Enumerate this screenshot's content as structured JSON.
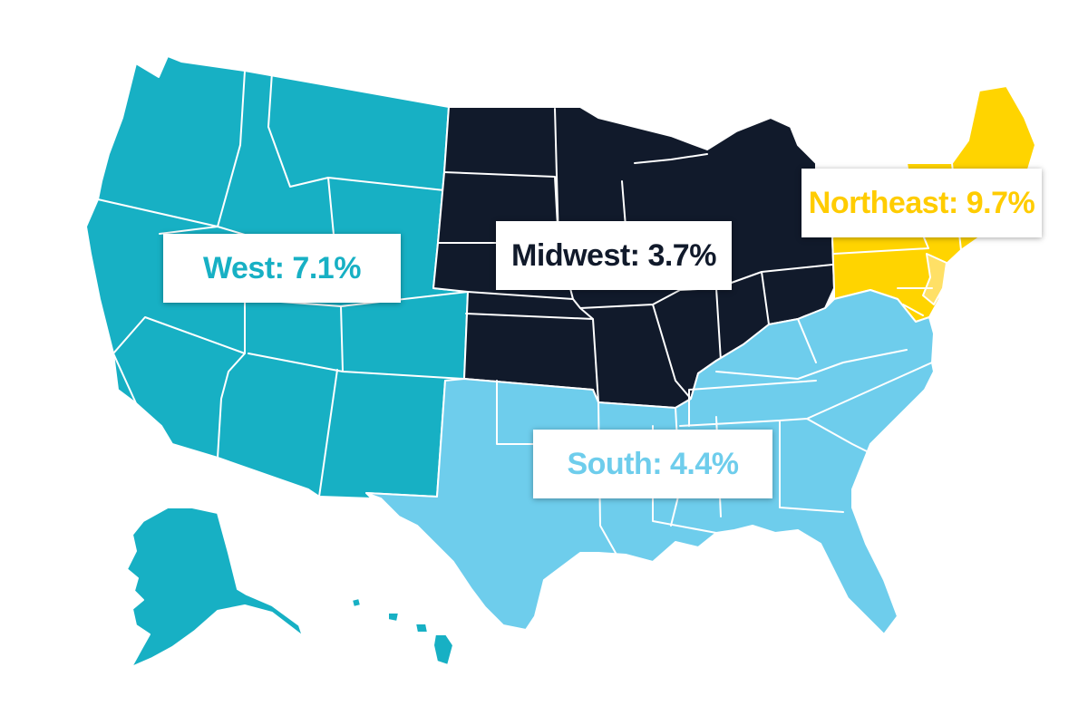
{
  "colors": {
    "west": "#17b0c4",
    "midwest": "#111a2b",
    "northeast": "#ffd400",
    "northeast_light": "#ffe066",
    "south": "#6ecdec",
    "background": "#ffffff"
  },
  "labels": {
    "west": "West: 7.1%",
    "midwest": "Midwest: 3.7%",
    "northeast": "Northeast: 9.7%",
    "south": "South: 4.4%"
  },
  "regions": [
    {
      "name": "West",
      "value": 7.1
    },
    {
      "name": "Midwest",
      "value": 3.7
    },
    {
      "name": "Northeast",
      "value": 9.7
    },
    {
      "name": "South",
      "value": 4.4
    }
  ]
}
